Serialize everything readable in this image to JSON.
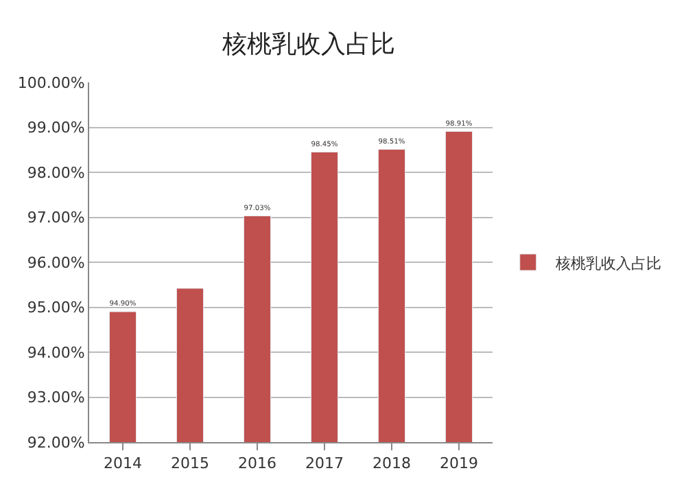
{
  "chart_data": {
    "type": "bar",
    "title": "核桃乳收入占比",
    "categories": [
      "2014",
      "2015",
      "2016",
      "2017",
      "2018",
      "2019"
    ],
    "series": [
      {
        "name": "核桃乳收入占比",
        "color": "#c0504d",
        "values": [
          94.9,
          95.42,
          97.03,
          98.45,
          98.51,
          98.91
        ],
        "value_labels": [
          "94.90%",
          null,
          "97.03%",
          "98.45%",
          "98.51%",
          "98.91%"
        ]
      }
    ],
    "ylim": [
      92,
      100
    ],
    "yticks": [
      {
        "value": 92,
        "label": "92.00%"
      },
      {
        "value": 93,
        "label": "93.00%"
      },
      {
        "value": 94,
        "label": "94.00%"
      },
      {
        "value": 95,
        "label": "95.00%"
      },
      {
        "value": 96,
        "label": "96.00%"
      },
      {
        "value": 97,
        "label": "97.00%"
      },
      {
        "value": 98,
        "label": "98.00%"
      },
      {
        "value": 99,
        "label": "99.00%"
      },
      {
        "value": 100,
        "label": "100.00%"
      }
    ],
    "grid": "y",
    "legend": "right"
  }
}
